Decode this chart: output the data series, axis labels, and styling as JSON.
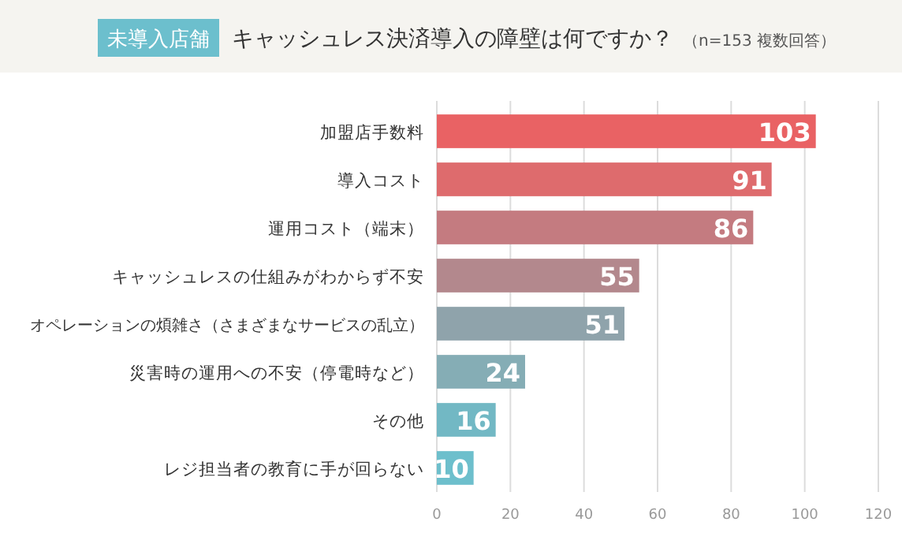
{
  "chart_data": {
    "type": "bar",
    "orientation": "horizontal",
    "title": "キャッシュレス決済導入の障壁は何ですか？",
    "subtitle": "（n=153 複数回答）",
    "annotations": [
      "未導入店舗"
    ],
    "categories": [
      "加盟店手数料",
      "導入コスト",
      "運用コスト（端末）",
      "キャッシュレスの仕組みがわからず不安",
      "オペレーションの煩雑さ（さまざまなサービスの乱立）",
      "災害時の運用への不安（停電時など）",
      "その他",
      "レジ担当者の教育に手が回らない"
    ],
    "values": [
      103,
      91,
      86,
      55,
      51,
      24,
      16,
      10
    ],
    "colors": [
      "#e96264",
      "#de6b6d",
      "#c47b80",
      "#b3888d",
      "#8fa3ab",
      "#85adb5",
      "#72b8c4",
      "#6dbfcc"
    ],
    "xlim": [
      0,
      120
    ],
    "xticks": [
      0,
      20,
      40,
      60,
      80,
      100,
      120
    ],
    "grid": "x",
    "data_labels": true
  }
}
